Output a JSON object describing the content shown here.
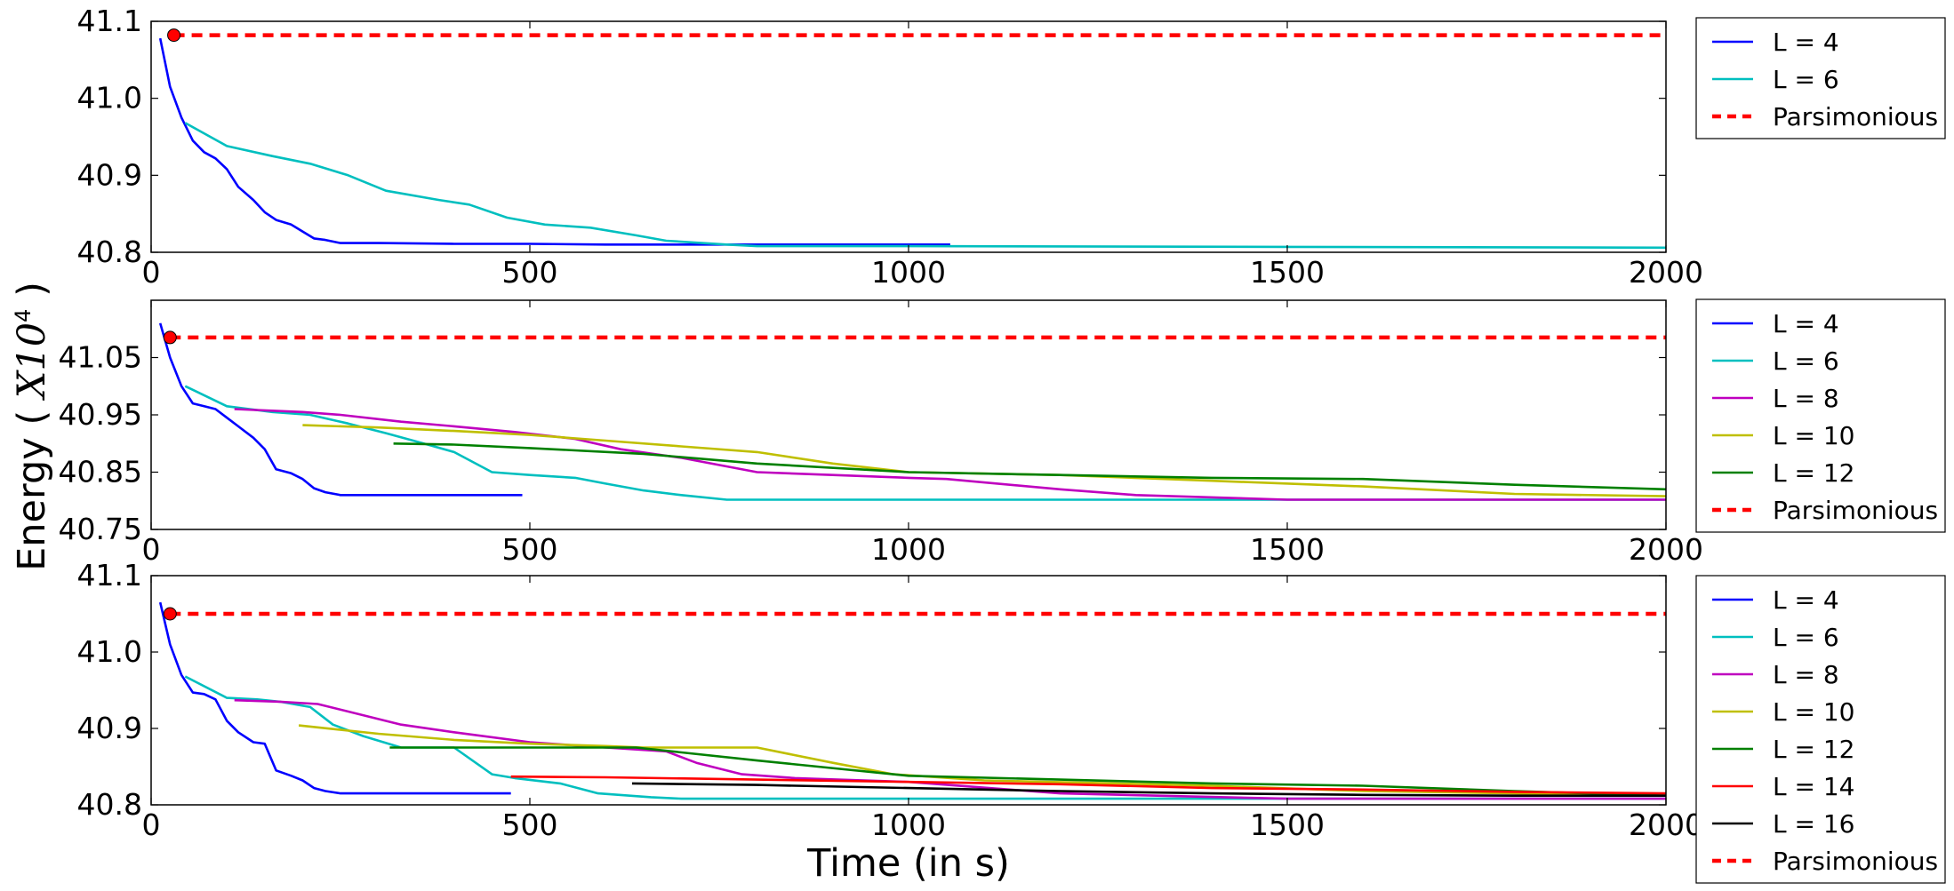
{
  "colors": {
    "L = 4": "#0000ff",
    "L = 6": "#00bfbf",
    "L = 8": "#bf00bf",
    "L = 10": "#bfbf00",
    "L = 12": "#008000",
    "L = 14": "#ff0000",
    "L = 16": "#000000",
    "Parsimonious": "#ff0000"
  },
  "chart_data": [
    {
      "type": "line",
      "xlim": [
        0,
        2000
      ],
      "ylim": [
        40.8,
        41.1
      ],
      "yticks": [
        "41.1",
        "41.0",
        "40.9",
        "40.8"
      ],
      "ytick_values": [
        41.1,
        41.0,
        40.9,
        40.8
      ],
      "xticks": [
        "0",
        "500",
        "1000",
        "1500",
        "2000"
      ],
      "xtick_values": [
        0,
        500,
        1000,
        1500,
        2000
      ],
      "grid": false,
      "legend": "outside right",
      "legend_entries": [
        "L = 4",
        "L = 6",
        "Parsimonious"
      ],
      "series": [
        {
          "name": "L = 4",
          "x": [
            12,
            25,
            40,
            55,
            70,
            85,
            100,
            115,
            135,
            150,
            165,
            185,
            200,
            215,
            230,
            250,
            265,
            300,
            400,
            500,
            600,
            700,
            800,
            900,
            1000,
            1055
          ],
          "y": [
            41.078,
            41.015,
            40.975,
            40.945,
            40.93,
            40.922,
            40.908,
            40.885,
            40.868,
            40.852,
            40.842,
            40.836,
            40.827,
            40.818,
            40.816,
            40.812,
            40.812,
            40.812,
            40.811,
            40.811,
            40.81,
            40.81,
            40.81,
            40.81,
            40.81,
            40.81
          ]
        },
        {
          "name": "L = 6",
          "x": [
            45,
            100,
            160,
            210,
            260,
            310,
            380,
            420,
            470,
            520,
            580,
            640,
            680,
            760,
            800,
            1000,
            1500,
            2000
          ],
          "y": [
            40.968,
            40.938,
            40.925,
            40.915,
            40.9,
            40.88,
            40.868,
            40.862,
            40.845,
            40.836,
            40.832,
            40.822,
            40.815,
            40.81,
            40.808,
            40.808,
            40.807,
            40.806
          ]
        },
        {
          "name": "Parsimonious",
          "x": [
            30,
            2000
          ],
          "y": [
            41.082,
            41.082
          ],
          "dashed": true,
          "marker_first": true
        }
      ]
    },
    {
      "type": "line",
      "xlim": [
        0,
        2000
      ],
      "ylim": [
        40.75,
        41.15
      ],
      "yticks": [
        "41.05",
        "40.95",
        "40.85",
        "40.75"
      ],
      "ytick_values": [
        41.05,
        40.95,
        40.85,
        40.75
      ],
      "xticks": [
        "0",
        "500",
        "1000",
        "1500",
        "2000"
      ],
      "xtick_values": [
        0,
        500,
        1000,
        1500,
        2000
      ],
      "grid": false,
      "legend": "outside right",
      "legend_entries": [
        "L = 4",
        "L = 6",
        "L = 8",
        "L = 10",
        "L = 12",
        "Parsimonious"
      ],
      "series": [
        {
          "name": "L = 4",
          "x": [
            12,
            25,
            40,
            55,
            70,
            85,
            100,
            115,
            135,
            150,
            165,
            185,
            200,
            215,
            230,
            250,
            265,
            300,
            400,
            490
          ],
          "y": [
            41.11,
            41.05,
            41.0,
            40.97,
            40.965,
            40.96,
            40.945,
            40.93,
            40.91,
            40.89,
            40.855,
            40.848,
            40.838,
            40.822,
            40.815,
            40.81,
            40.81,
            40.81,
            40.81,
            40.81
          ]
        },
        {
          "name": "L = 6",
          "x": [
            45,
            100,
            160,
            210,
            260,
            310,
            360,
            400,
            450,
            500,
            560,
            600,
            650,
            700,
            760,
            800,
            1000,
            1500,
            2000
          ],
          "y": [
            41.0,
            40.965,
            40.955,
            40.95,
            40.935,
            40.918,
            40.9,
            40.885,
            40.85,
            40.845,
            40.84,
            40.83,
            40.818,
            40.81,
            40.802,
            40.802,
            40.802,
            40.802,
            40.802
          ]
        },
        {
          "name": "L = 8",
          "x": [
            110,
            200,
            250,
            330,
            400,
            480,
            560,
            620,
            700,
            800,
            900,
            1000,
            1050,
            1200,
            1300,
            1500,
            2000
          ],
          "y": [
            40.96,
            40.955,
            40.95,
            40.938,
            40.93,
            40.92,
            40.908,
            40.89,
            40.875,
            40.85,
            40.845,
            40.84,
            40.838,
            40.82,
            40.81,
            40.802,
            40.802
          ]
        },
        {
          "name": "L = 10",
          "x": [
            200,
            300,
            400,
            500,
            600,
            700,
            800,
            900,
            1000,
            1200,
            1400,
            1600,
            1800,
            2000
          ],
          "y": [
            40.932,
            40.928,
            40.922,
            40.915,
            40.905,
            40.895,
            40.885,
            40.865,
            40.85,
            40.845,
            40.835,
            40.825,
            40.812,
            40.808
          ]
        },
        {
          "name": "L = 12",
          "x": [
            320,
            400,
            500,
            650,
            800,
            1000,
            1200,
            1400,
            1600,
            1800,
            2000
          ],
          "y": [
            40.9,
            40.898,
            40.892,
            40.882,
            40.865,
            40.85,
            40.845,
            40.84,
            40.838,
            40.828,
            40.82
          ]
        },
        {
          "name": "Parsimonious",
          "x": [
            25,
            2000
          ],
          "y": [
            41.085,
            41.085
          ],
          "dashed": true,
          "marker_first": true
        }
      ]
    },
    {
      "type": "line",
      "xlim": [
        0,
        2000
      ],
      "ylim": [
        40.8,
        41.1
      ],
      "yticks": [
        "41.1",
        "41.0",
        "40.9",
        "40.8"
      ],
      "ytick_values": [
        41.1,
        41.0,
        40.9,
        40.8
      ],
      "xticks": [
        "0",
        "500",
        "1000",
        "1500",
        "2000"
      ],
      "xtick_values": [
        0,
        500,
        1000,
        1500,
        2000
      ],
      "xlabel": "Time (in s)",
      "grid": false,
      "legend": "outside right",
      "legend_entries": [
        "L = 4",
        "L = 6",
        "L = 8",
        "L = 10",
        "L = 12",
        "L = 14",
        "L = 16",
        "Parsimonious"
      ],
      "series": [
        {
          "name": "L = 4",
          "x": [
            12,
            25,
            40,
            55,
            70,
            85,
            100,
            115,
            135,
            150,
            165,
            185,
            200,
            215,
            230,
            250,
            265,
            300,
            400,
            475
          ],
          "y": [
            41.065,
            41.01,
            40.97,
            40.947,
            40.945,
            40.938,
            40.91,
            40.895,
            40.882,
            40.88,
            40.845,
            40.838,
            40.832,
            40.822,
            40.818,
            40.815,
            40.815,
            40.815,
            40.815,
            40.815
          ]
        },
        {
          "name": "L = 6",
          "x": [
            45,
            100,
            140,
            170,
            210,
            240,
            280,
            330,
            400,
            450,
            480,
            540,
            590,
            660,
            700,
            800,
            1000,
            1500,
            2000
          ],
          "y": [
            40.968,
            40.94,
            40.938,
            40.935,
            40.928,
            40.905,
            40.89,
            40.875,
            40.875,
            40.84,
            40.835,
            40.828,
            40.815,
            40.81,
            40.808,
            40.808,
            40.808,
            40.808,
            40.808
          ]
        },
        {
          "name": "L = 8",
          "x": [
            110,
            170,
            220,
            330,
            400,
            500,
            600,
            680,
            720,
            780,
            850,
            1000,
            1200,
            1500,
            2000
          ],
          "y": [
            40.937,
            40.935,
            40.932,
            40.905,
            40.895,
            40.882,
            40.875,
            40.87,
            40.855,
            40.84,
            40.835,
            40.83,
            40.815,
            40.808,
            40.808
          ]
        },
        {
          "name": "L = 10",
          "x": [
            195,
            300,
            400,
            500,
            600,
            650,
            800,
            900,
            980,
            1100,
            1400,
            1600,
            1800,
            2000
          ],
          "y": [
            40.904,
            40.893,
            40.885,
            40.88,
            40.877,
            40.875,
            40.875,
            40.855,
            40.84,
            40.832,
            40.825,
            40.818,
            40.815,
            40.812
          ]
        },
        {
          "name": "L = 12",
          "x": [
            315,
            400,
            500,
            640,
            800,
            1000,
            1200,
            1400,
            1600,
            1800,
            2000
          ],
          "y": [
            40.875,
            40.875,
            40.875,
            40.875,
            40.858,
            40.838,
            40.833,
            40.828,
            40.825,
            40.818,
            40.812
          ]
        },
        {
          "name": "L = 14",
          "x": [
            475,
            600,
            800,
            1000,
            1200,
            1400,
            1600,
            1800,
            2000
          ],
          "y": [
            40.837,
            40.836,
            40.833,
            40.83,
            40.827,
            40.822,
            40.82,
            40.817,
            40.815
          ]
        },
        {
          "name": "L = 16",
          "x": [
            635,
            800,
            1000,
            1200,
            1400,
            1600,
            1800,
            2000
          ],
          "y": [
            40.828,
            40.826,
            40.822,
            40.818,
            40.815,
            40.813,
            40.812,
            40.812
          ]
        },
        {
          "name": "Parsimonious",
          "x": [
            25,
            2000
          ],
          "y": [
            41.05,
            41.05
          ],
          "dashed": true,
          "marker_first": true
        }
      ]
    }
  ],
  "ylabel": "Energy ( $X10^4$ )",
  "ylabel_parts": {
    "prefix": "Energy ( ",
    "var": "X10",
    "exp": "4",
    "suffix": " )"
  }
}
